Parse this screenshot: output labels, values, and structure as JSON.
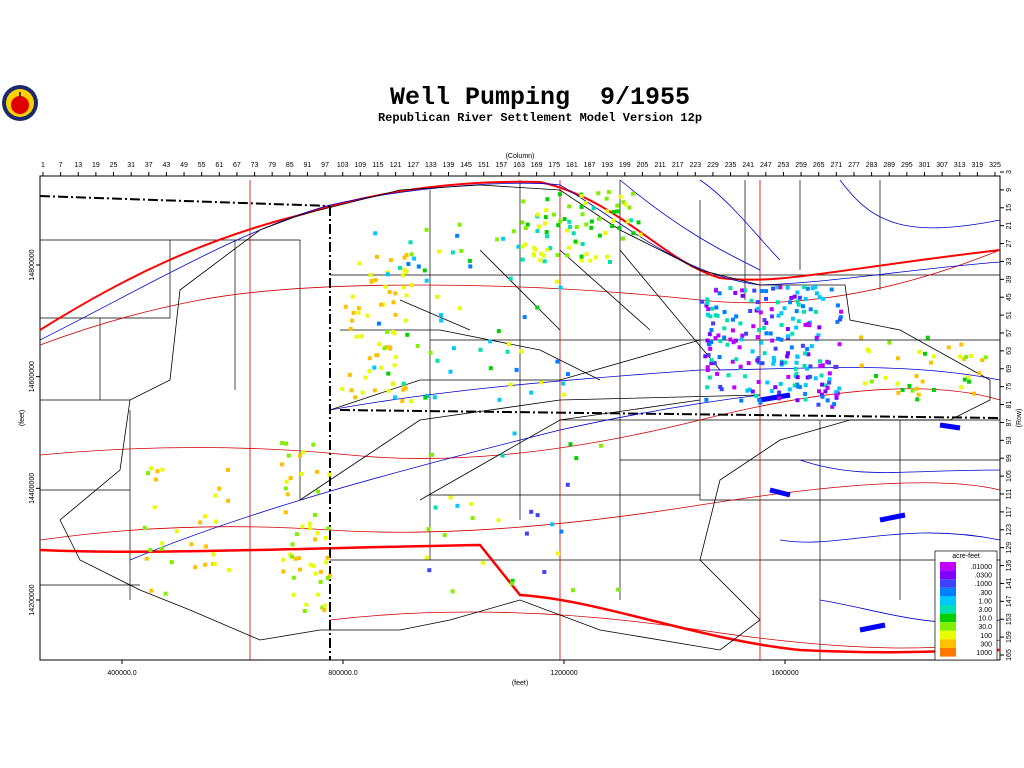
{
  "header": {
    "title": "Well Pumping  9/1955",
    "subtitle": "Republican River Settlement Model Version 12p"
  },
  "axes": {
    "column_label": "(Column)",
    "row_label": "(Row)",
    "x_feet_label": "(feet)",
    "y_feet_label": "(feet)",
    "columns": [
      1,
      7,
      13,
      19,
      25,
      31,
      37,
      43,
      49,
      55,
      61,
      67,
      73,
      79,
      85,
      91,
      97,
      103,
      109,
      115,
      121,
      127,
      133,
      139,
      145,
      151,
      157,
      163,
      169,
      175,
      181,
      187,
      193,
      199,
      205,
      211,
      217,
      223,
      229,
      235,
      241,
      247,
      253,
      259,
      265,
      271,
      277,
      283,
      289,
      295,
      301,
      307,
      313,
      319,
      325
    ],
    "rows": [
      3,
      9,
      15,
      21,
      27,
      33,
      39,
      45,
      51,
      57,
      63,
      69,
      75,
      81,
      87,
      93,
      99,
      105,
      111,
      117,
      123,
      129,
      135,
      141,
      147,
      153,
      159,
      165
    ],
    "x_feet": [
      {
        "value": 400000,
        "label": "400000.0"
      },
      {
        "value": 800000,
        "label": "800000.0"
      },
      {
        "value": 1200000,
        "label": "1200000"
      },
      {
        "value": 1600000,
        "label": "1600000"
      }
    ],
    "y_feet": [
      {
        "value": 14800000,
        "label": "14800000"
      },
      {
        "value": 14600000,
        "label": "14600000"
      },
      {
        "value": 14400000,
        "label": "14400000"
      },
      {
        "value": 14200000,
        "label": "14200000"
      }
    ]
  },
  "legend": {
    "title": "acre-feet",
    "items": [
      {
        "label": ".01000",
        "color": "#c000ff"
      },
      {
        "label": ".0300",
        "color": "#8000ff"
      },
      {
        "label": ".1000",
        "color": "#4040ff"
      },
      {
        "label": ".300",
        "color": "#0080ff"
      },
      {
        "label": "1.00",
        "color": "#00c8ff"
      },
      {
        "label": "3.00",
        "color": "#00e0b0"
      },
      {
        "label": "10.0",
        "color": "#00d000"
      },
      {
        "label": "30.0",
        "color": "#80f000"
      },
      {
        "label": "100",
        "color": "#e8ff00"
      },
      {
        "label": "300",
        "color": "#ffc000"
      },
      {
        "label": "1000",
        "color": "#ff7800"
      }
    ]
  }
}
